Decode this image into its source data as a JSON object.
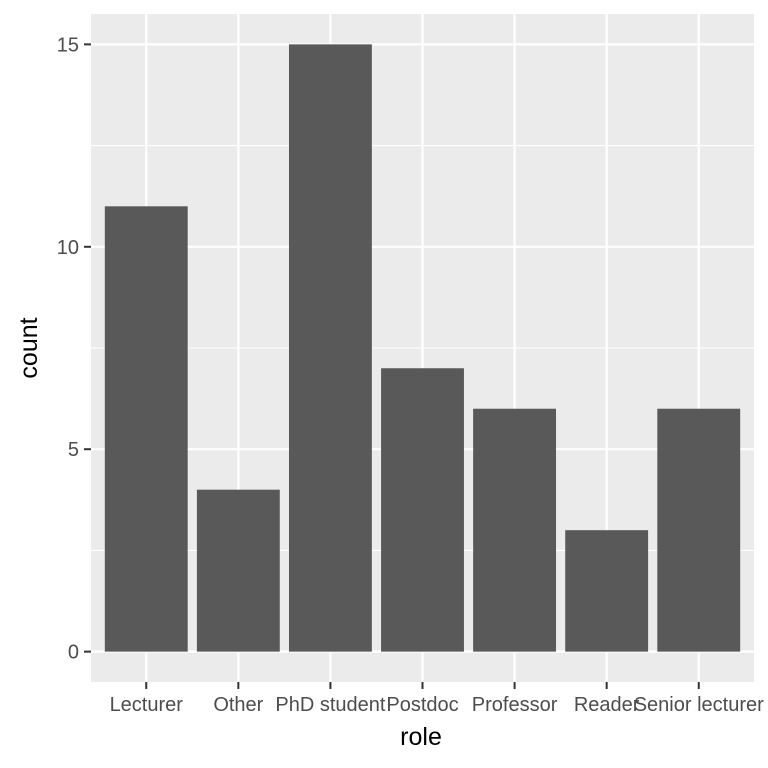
{
  "chart_data": {
    "type": "bar",
    "categories": [
      "Lecturer",
      "Other",
      "PhD student",
      "Postdoc",
      "Professor",
      "Reader",
      "Senior lecturer"
    ],
    "values": [
      11,
      4,
      15,
      7,
      6,
      3,
      6
    ],
    "xlabel": "role",
    "ylabel": "count",
    "ylim": [
      -0.75,
      15.75
    ],
    "yticks": [
      0,
      5,
      10,
      15
    ],
    "grid": true,
    "colors": {
      "panel_background": "#ebebeb",
      "grid_major": "#ffffff",
      "bar_fill": "#595959",
      "tick_text": "#4d4d4d",
      "axis_title": "#000000"
    }
  }
}
